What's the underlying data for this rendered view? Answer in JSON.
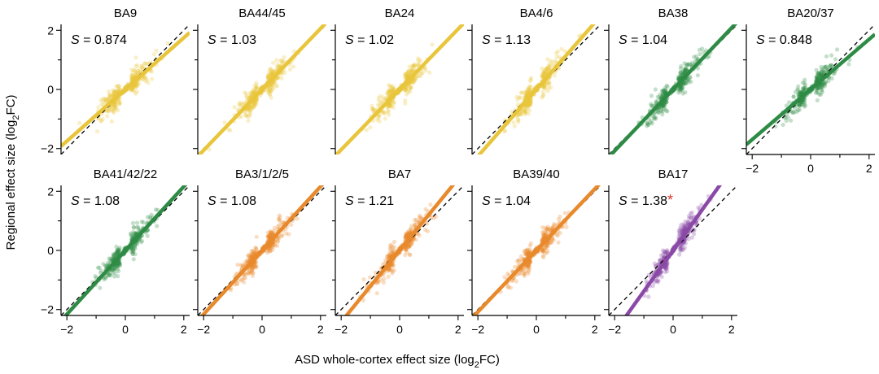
{
  "figure": {
    "ylabel": "Regional effect size (log",
    "ylabel_sub": "2",
    "ylabel_tail": "FC)",
    "xlabel": "ASD whole-cortex effect size (log",
    "xlabel_sub": "2",
    "xlabel_tail": "FC)",
    "slope_symbol": "S",
    "significance_marker": "*"
  },
  "colors": {
    "yellow": "#e8c53a",
    "green": "#2e8b45",
    "orange": "#e8892c",
    "purple": "#8a49a6",
    "star": "#d6342a",
    "identity_line": "#000000"
  },
  "chart_data": [
    {
      "type": "scatter",
      "title": "BA9",
      "slope": 0.874,
      "slope_label": "= 0.874",
      "color": "yellow",
      "significant": false,
      "xlim": [
        -2.2,
        2.2
      ],
      "ylim": [
        -2.2,
        2.2
      ],
      "xticks": [
        "-2",
        "0",
        "2"
      ],
      "yticks": [
        "2",
        "0",
        "-2"
      ]
    },
    {
      "type": "scatter",
      "title": "BA44/45",
      "slope": 1.03,
      "slope_label": "= 1.03",
      "color": "yellow",
      "significant": false,
      "xlim": [
        -2.2,
        2.2
      ],
      "ylim": [
        -2.2,
        2.2
      ],
      "xticks": [
        "-2",
        "0",
        "2"
      ],
      "yticks": [
        "2",
        "0",
        "-2"
      ]
    },
    {
      "type": "scatter",
      "title": "BA24",
      "slope": 1.02,
      "slope_label": "= 1.02",
      "color": "yellow",
      "significant": false,
      "xlim": [
        -2.2,
        2.2
      ],
      "ylim": [
        -2.2,
        2.2
      ],
      "xticks": [
        "-2",
        "0",
        "2"
      ],
      "yticks": [
        "2",
        "0",
        "-2"
      ]
    },
    {
      "type": "scatter",
      "title": "BA4/6",
      "slope": 1.13,
      "slope_label": "= 1.13",
      "color": "yellow",
      "significant": false,
      "xlim": [
        -2.2,
        2.2
      ],
      "ylim": [
        -2.2,
        2.2
      ],
      "xticks": [
        "-2",
        "0",
        "2"
      ],
      "yticks": [
        "2",
        "0",
        "-2"
      ]
    },
    {
      "type": "scatter",
      "title": "BA38",
      "slope": 1.04,
      "slope_label": "= 1.04",
      "color": "green",
      "significant": false,
      "xlim": [
        -2.2,
        2.2
      ],
      "ylim": [
        -2.2,
        2.2
      ],
      "xticks": [
        "-2",
        "0",
        "2"
      ],
      "yticks": [
        "2",
        "0",
        "-2"
      ]
    },
    {
      "type": "scatter",
      "title": "BA20/37",
      "slope": 0.848,
      "slope_label": "= 0.848",
      "color": "green",
      "significant": false,
      "xlim": [
        -2.2,
        2.2
      ],
      "ylim": [
        -2.2,
        2.2
      ],
      "xticks": [
        "-2",
        "0",
        "2"
      ],
      "yticks": [
        "2",
        "0",
        "-2"
      ]
    },
    {
      "type": "scatter",
      "title": "BA41/42/22",
      "slope": 1.08,
      "slope_label": "= 1.08",
      "color": "green",
      "significant": false,
      "xlim": [
        -2.2,
        2.2
      ],
      "ylim": [
        -2.2,
        2.2
      ],
      "xticks": [
        "-2",
        "0",
        "2"
      ],
      "yticks": [
        "2",
        "0",
        "-2"
      ]
    },
    {
      "type": "scatter",
      "title": "BA3/1/2/5",
      "slope": 1.08,
      "slope_label": "= 1.08",
      "color": "orange",
      "significant": false,
      "xlim": [
        -2.2,
        2.2
      ],
      "ylim": [
        -2.2,
        2.2
      ],
      "xticks": [
        "-2",
        "0",
        "2"
      ],
      "yticks": [
        "2",
        "0",
        "-2"
      ]
    },
    {
      "type": "scatter",
      "title": "BA7",
      "slope": 1.21,
      "slope_label": "= 1.21",
      "color": "orange",
      "significant": false,
      "xlim": [
        -2.2,
        2.2
      ],
      "ylim": [
        -2.2,
        2.2
      ],
      "xticks": [
        "-2",
        "0",
        "2"
      ],
      "yticks": [
        "2",
        "0",
        "-2"
      ]
    },
    {
      "type": "scatter",
      "title": "BA39/40",
      "slope": 1.04,
      "slope_label": "= 1.04",
      "color": "orange",
      "significant": false,
      "xlim": [
        -2.2,
        2.2
      ],
      "ylim": [
        -2.2,
        2.2
      ],
      "xticks": [
        "-2",
        "0",
        "2"
      ],
      "yticks": [
        "2",
        "0",
        "-2"
      ]
    },
    {
      "type": "scatter",
      "title": "BA17",
      "slope": 1.38,
      "slope_label": "= 1.38",
      "color": "purple",
      "significant": true,
      "xlim": [
        -2.2,
        2.2
      ],
      "ylim": [
        -2.2,
        2.2
      ],
      "xticks": [
        "-2",
        "0",
        "2"
      ],
      "yticks": [
        "2",
        "0",
        "-2"
      ]
    }
  ]
}
